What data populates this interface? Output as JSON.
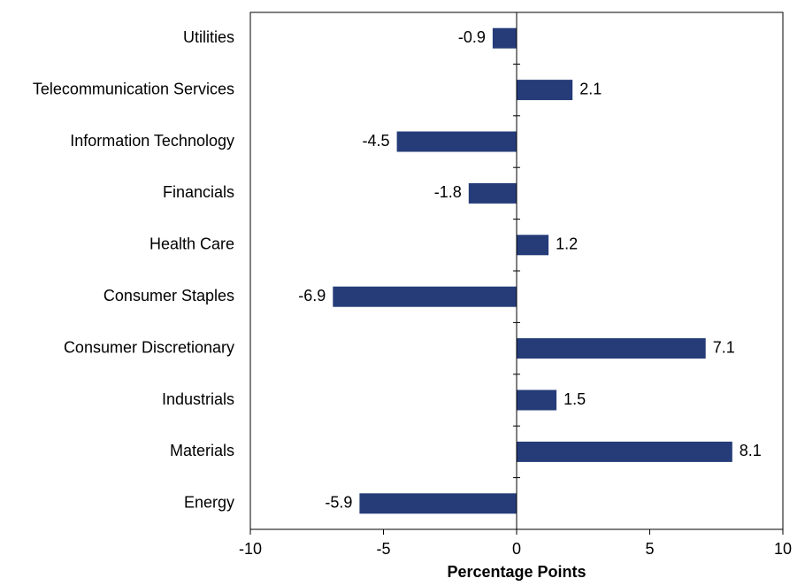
{
  "chart_data": {
    "type": "bar",
    "orientation": "horizontal",
    "categories": [
      "Energy",
      "Materials",
      "Industrials",
      "Consumer Discretionary",
      "Consumer Staples",
      "Health Care",
      "Financials",
      "Information Technology",
      "Telecommunication Services",
      "Utilities"
    ],
    "values": [
      -5.9,
      8.1,
      1.5,
      7.1,
      -6.9,
      1.2,
      -1.8,
      -4.5,
      2.1,
      -0.9
    ],
    "value_labels": [
      "-5.9",
      "8.1",
      "1.5",
      "7.1",
      "-6.9",
      "1.2",
      "-1.8",
      "-4.5",
      "2.1",
      "-0.9"
    ],
    "xlabel": "Percentage Points",
    "xlim": [
      -10,
      10
    ],
    "xticks": [
      -10,
      -5,
      0,
      5,
      10
    ],
    "xtick_labels": [
      "-10",
      "-5",
      "0",
      "5",
      "10"
    ],
    "bar_color": "#253c78",
    "grid": false,
    "legend": false
  }
}
